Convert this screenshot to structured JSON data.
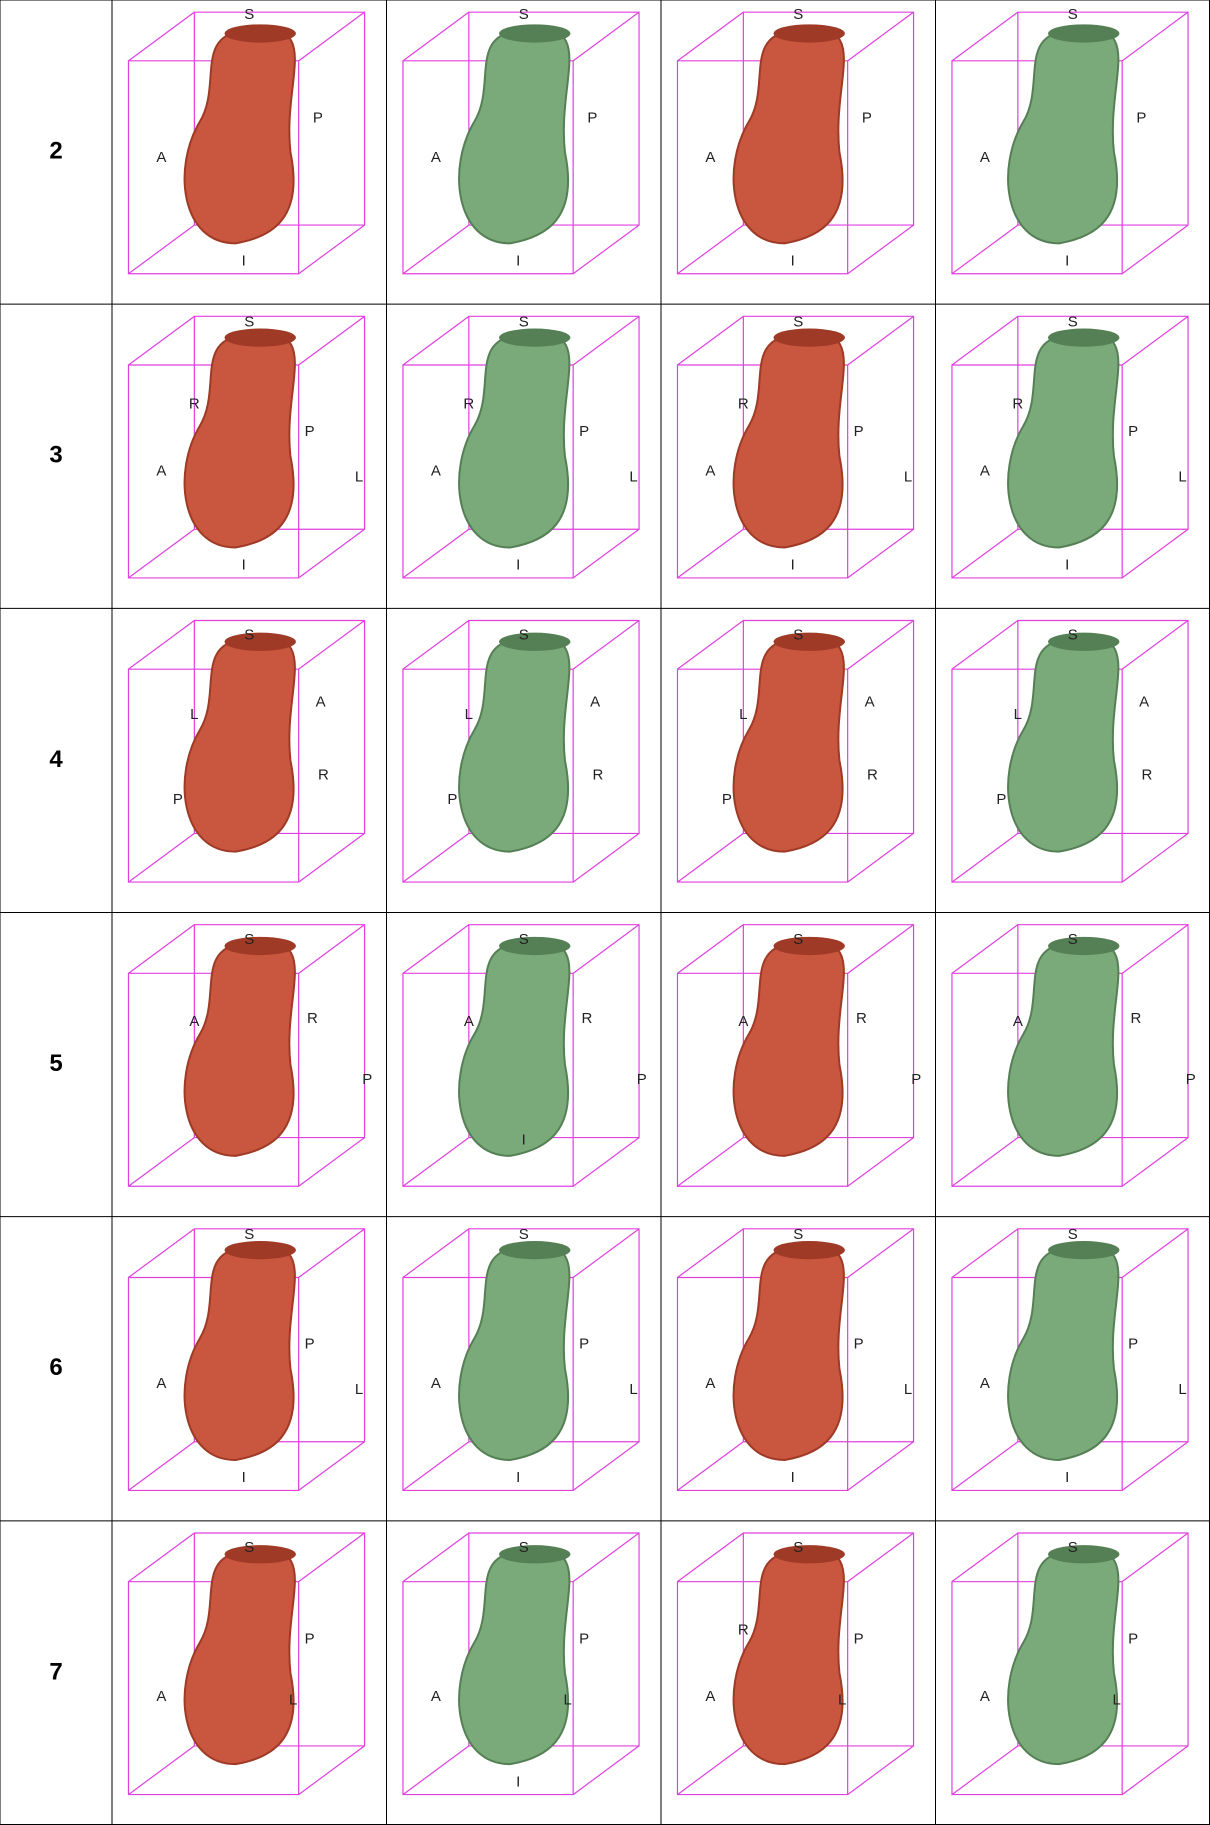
{
  "table": {
    "rows": [
      {
        "label": "2",
        "cells": [
          {
            "labels": [
              "S",
              "P",
              "A",
              "I"
            ]
          },
          {
            "labels": [
              "S",
              "P",
              "A",
              "I"
            ]
          },
          {
            "labels": [
              "S",
              "P",
              "A",
              "I"
            ]
          },
          {
            "labels": [
              "S",
              "P",
              "A",
              "I"
            ]
          }
        ]
      },
      {
        "label": "3",
        "cells": [
          {
            "labels": [
              "S",
              "R",
              "P",
              "A",
              "L",
              "I"
            ]
          },
          {
            "labels": [
              "S",
              "R",
              "P",
              "A",
              "L",
              "I"
            ]
          },
          {
            "labels": [
              "S",
              "R",
              "P",
              "A",
              "L",
              "I"
            ]
          },
          {
            "labels": [
              "S",
              "R",
              "P",
              "A",
              "L",
              "I"
            ]
          }
        ]
      },
      {
        "label": "4",
        "cells": [
          {
            "labels": [
              "S",
              "L",
              "A",
              "P",
              "R"
            ]
          },
          {
            "labels": [
              "S",
              "L",
              "A",
              "P",
              "R"
            ]
          },
          {
            "labels": [
              "S",
              "L",
              "A",
              "P",
              "R"
            ]
          },
          {
            "labels": [
              "S",
              "L",
              "A",
              "P",
              "R"
            ]
          }
        ]
      },
      {
        "label": "5",
        "cells": [
          {
            "labels": [
              "S",
              "A",
              "R",
              "P"
            ]
          },
          {
            "labels": [
              "S",
              "A",
              "R",
              "P",
              "I"
            ]
          },
          {
            "labels": [
              "S",
              "A",
              "R",
              "P"
            ]
          },
          {
            "labels": [
              "S",
              "A",
              "R",
              "P"
            ]
          }
        ]
      },
      {
        "label": "6",
        "cells": [
          {
            "labels": [
              "S",
              "P",
              "A",
              "L",
              "I"
            ]
          },
          {
            "labels": [
              "S",
              "P",
              "A",
              "L",
              "I"
            ]
          },
          {
            "labels": [
              "S",
              "P",
              "A",
              "L",
              "I"
            ]
          },
          {
            "labels": [
              "S",
              "P",
              "A",
              "L",
              "I"
            ]
          }
        ]
      },
      {
        "label": "7",
        "cells": [
          {
            "labels": [
              "S",
              "P",
              "A",
              "L"
            ]
          },
          {
            "labels": [
              "S",
              "P",
              "A",
              "L",
              "I"
            ]
          },
          {
            "labels": [
              "S",
              "R",
              "P",
              "A",
              "L"
            ]
          },
          {
            "labels": [
              "S",
              "P",
              "A",
              "L"
            ]
          }
        ]
      }
    ]
  }
}
